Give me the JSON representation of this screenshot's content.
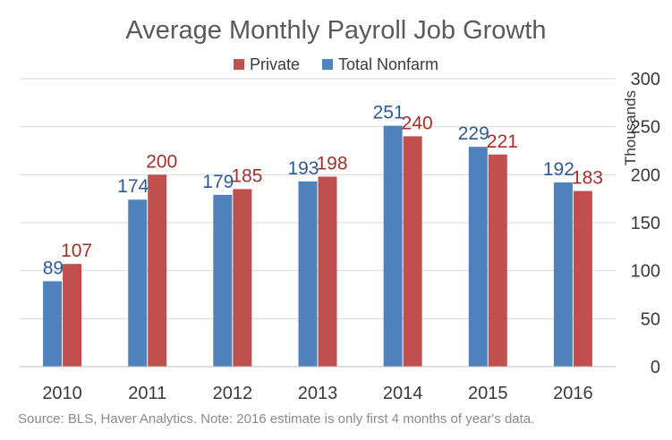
{
  "chart_data": {
    "type": "bar",
    "title": "Average Monthly Payroll Job Growth",
    "categories": [
      "2010",
      "2011",
      "2012",
      "2013",
      "2014",
      "2015",
      "2016"
    ],
    "series": [
      {
        "name": "Total Nonfarm",
        "values": [
          89,
          174,
          179,
          193,
          251,
          229,
          192
        ],
        "color": "#4f81bd",
        "label_color": "#2f5a96"
      },
      {
        "name": "Private",
        "values": [
          107,
          200,
          185,
          198,
          240,
          221,
          183
        ],
        "color": "#c0504d",
        "label_color": "#a3302d"
      }
    ],
    "legend_order": [
      "Private",
      "Total Nonfarm"
    ],
    "legend_position": "top",
    "ylabel": "Thousands",
    "yaxis_position": "right",
    "ylim": [
      0,
      300
    ],
    "yticks": [
      0,
      50,
      100,
      150,
      200,
      250,
      300
    ],
    "grid": true,
    "note": "Source: BLS, Haver Analytics. Note: 2016 estimate is only first 4 months of year's data."
  }
}
